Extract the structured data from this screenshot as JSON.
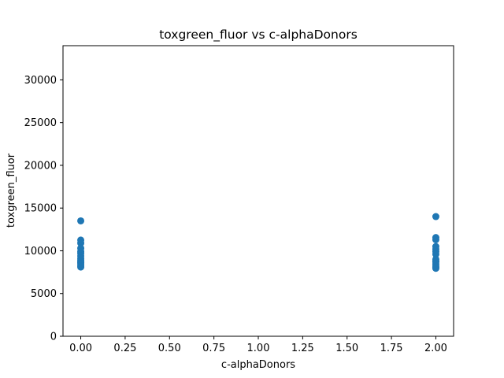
{
  "chart_data": {
    "type": "scatter",
    "title": "toxgreen_fluor vs c-alphaDonors",
    "xlabel": "c-alphaDonors",
    "ylabel": "toxgreen_fluor",
    "xlim": [
      -0.1,
      2.1
    ],
    "ylim": [
      0,
      34000
    ],
    "xticks": [
      0.0,
      0.25,
      0.5,
      0.75,
      1.0,
      1.25,
      1.5,
      1.75,
      2.0
    ],
    "xtick_labels": [
      "0.00",
      "0.25",
      "0.50",
      "0.75",
      "1.00",
      "1.25",
      "1.50",
      "1.75",
      "2.00"
    ],
    "yticks": [
      0,
      5000,
      10000,
      15000,
      20000,
      25000,
      30000
    ],
    "ytick_labels": [
      "0",
      "5000",
      "10000",
      "15000",
      "20000",
      "25000",
      "30000"
    ],
    "grid": false,
    "marker_color": "#1f77b4",
    "series": [
      {
        "x": [
          0,
          0,
          0,
          0,
          0,
          0,
          0,
          0,
          0,
          0,
          0,
          0,
          0,
          0,
          2,
          2,
          2,
          2,
          2,
          2,
          2,
          2,
          2,
          2,
          2,
          2,
          2,
          2
        ],
        "y": [
          13500,
          11250,
          10900,
          10300,
          9900,
          9700,
          9400,
          9100,
          8900,
          8700,
          8600,
          8450,
          8250,
          8100,
          14000,
          11550,
          11300,
          10500,
          10200,
          9900,
          9600,
          9000,
          8800,
          8700,
          8450,
          8200,
          8050,
          7950
        ]
      }
    ]
  }
}
